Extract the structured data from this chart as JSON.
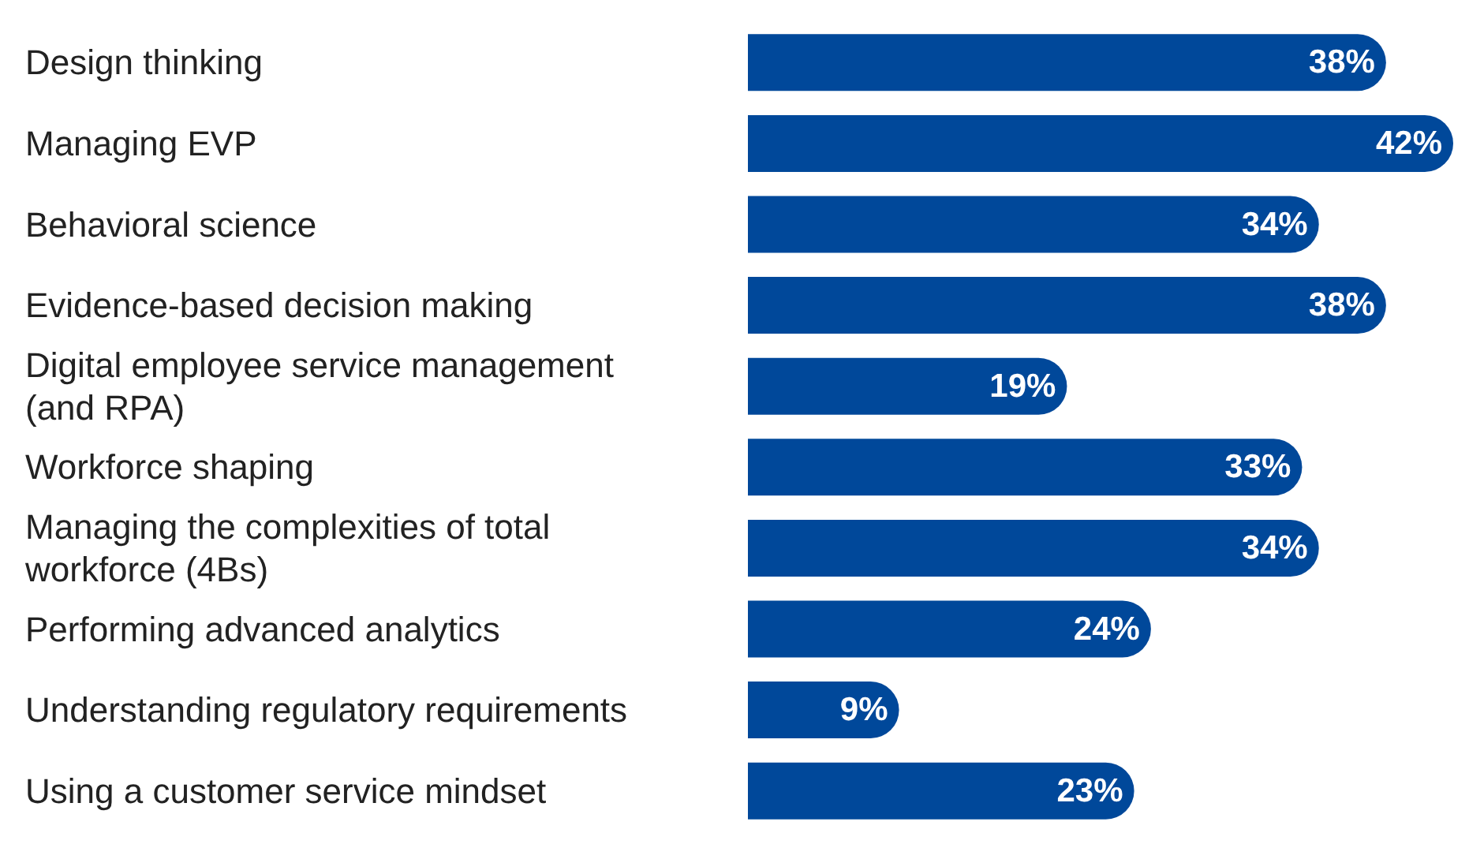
{
  "chart_data": {
    "type": "bar",
    "orientation": "horizontal",
    "categories": [
      "Design thinking",
      "Managing EVP",
      "Behavioral science",
      "Evidence-based decision making",
      "Digital employee service management (and RPA)",
      "Workforce shaping",
      "Managing the complexities of total workforce (4Bs)",
      "Performing advanced analytics",
      "Understanding regulatory requirements",
      "Using a customer service mindset"
    ],
    "values": [
      38,
      42,
      34,
      38,
      19,
      33,
      34,
      24,
      9,
      23
    ],
    "value_labels": [
      "38%",
      "42%",
      "34%",
      "38%",
      "19%",
      "33%",
      "34%",
      "24%",
      "9%",
      "23%"
    ],
    "color": "#00489a",
    "tick_labels": "y"
  }
}
